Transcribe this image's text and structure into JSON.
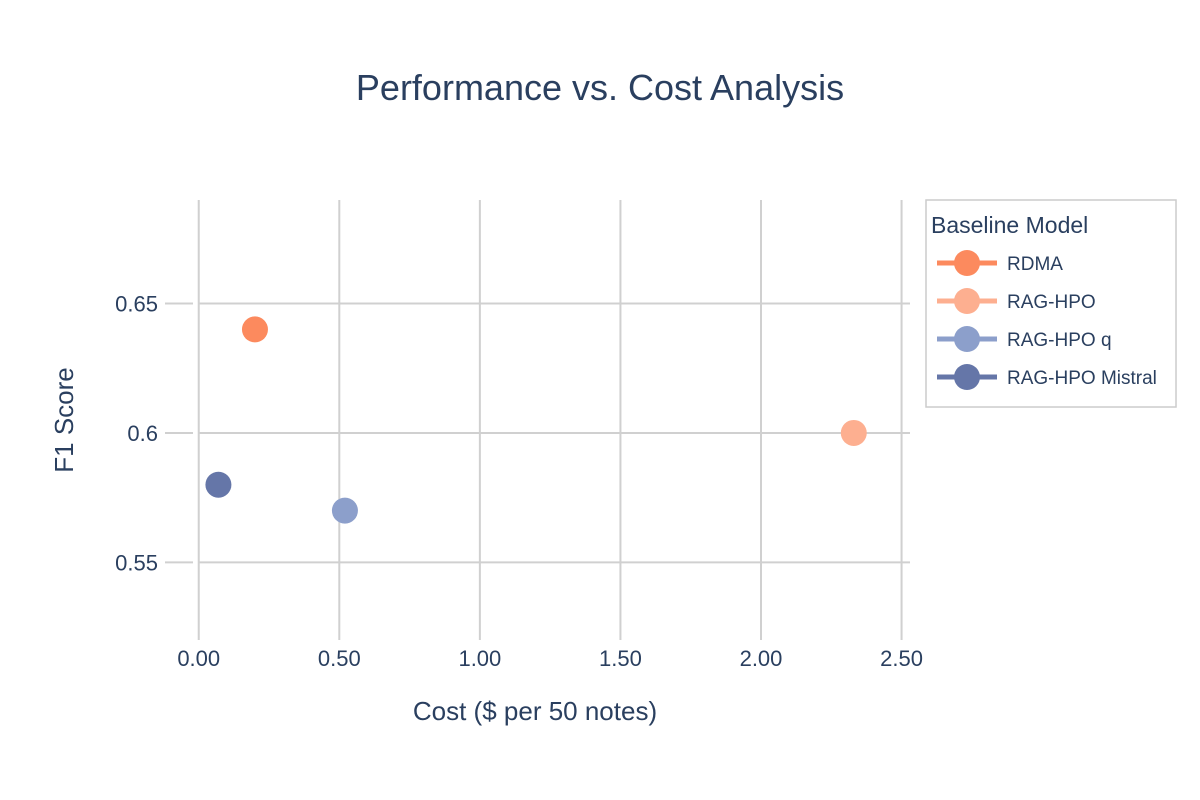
{
  "chart_data": {
    "type": "scatter",
    "title": "Performance vs. Cost Analysis",
    "xlabel": "Cost ($ per 50 notes)",
    "ylabel": "F1 Score",
    "xlim": [
      -0.12,
      2.53
    ],
    "ylim": [
      0.52,
      0.69
    ],
    "xticks": [
      0,
      0.5,
      1,
      1.5,
      2,
      2.5
    ],
    "xtick_labels": [
      "0.00",
      "0.50",
      "1.00",
      "1.50",
      "2.00",
      "2.50"
    ],
    "yticks": [
      0.55,
      0.6,
      0.65
    ],
    "ytick_labels": [
      "0.55",
      "0.6",
      "0.65"
    ],
    "grid": true,
    "legend": {
      "title": "Baseline Model",
      "position": "right"
    },
    "series": [
      {
        "name": "RDMA",
        "color": "#fc8a5e",
        "x": [
          0.2
        ],
        "y": [
          0.64
        ]
      },
      {
        "name": "RAG-HPO",
        "color": "#fdaf90",
        "x": [
          2.33
        ],
        "y": [
          0.6
        ]
      },
      {
        "name": "RAG-HPO q",
        "color": "#8c9fcb",
        "x": [
          0.52
        ],
        "y": [
          0.57
        ]
      },
      {
        "name": "RAG-HPO Mistral",
        "color": "#6576a8",
        "x": [
          0.07
        ],
        "y": [
          0.58
        ]
      }
    ]
  }
}
